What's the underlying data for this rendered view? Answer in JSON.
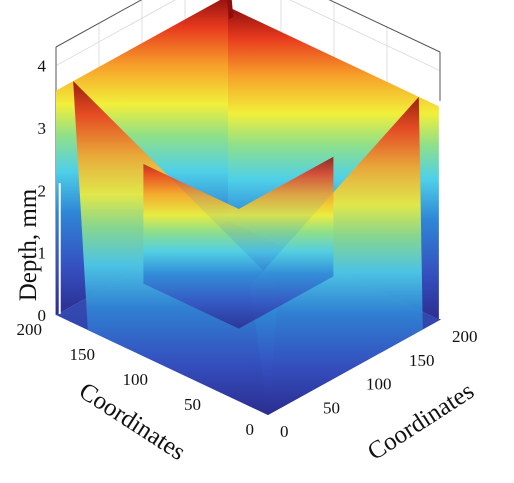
{
  "chart_data": {
    "type": "surface",
    "zlabel": "Depth, mm",
    "xlabel": "Coordinates",
    "ylabel": "Coordinates",
    "x_ticks": [
      "0",
      "50",
      "100",
      "150",
      "200"
    ],
    "y_ticks": [
      "0",
      "50",
      "100",
      "150",
      "200"
    ],
    "z_ticks": [
      "0",
      "1",
      "2",
      "3",
      "4"
    ],
    "xlim": [
      0,
      200
    ],
    "ylim": [
      0,
      200
    ],
    "zlim": [
      0,
      4.3
    ],
    "colormap": "jet",
    "colors": [
      "#2b2d8f",
      "#3550c0",
      "#2f86d6",
      "#4fd0e8",
      "#8fe08a",
      "#f2ef3a",
      "#f7a12a",
      "#e83a1e",
      "#8e0d0d"
    ],
    "description_free": true,
    "surface_profile": {
      "floor_depth": 0,
      "outer_wall_depth": 3.6,
      "corner_peak_depth": 4.2,
      "pillar_depth": 3.5
    }
  }
}
